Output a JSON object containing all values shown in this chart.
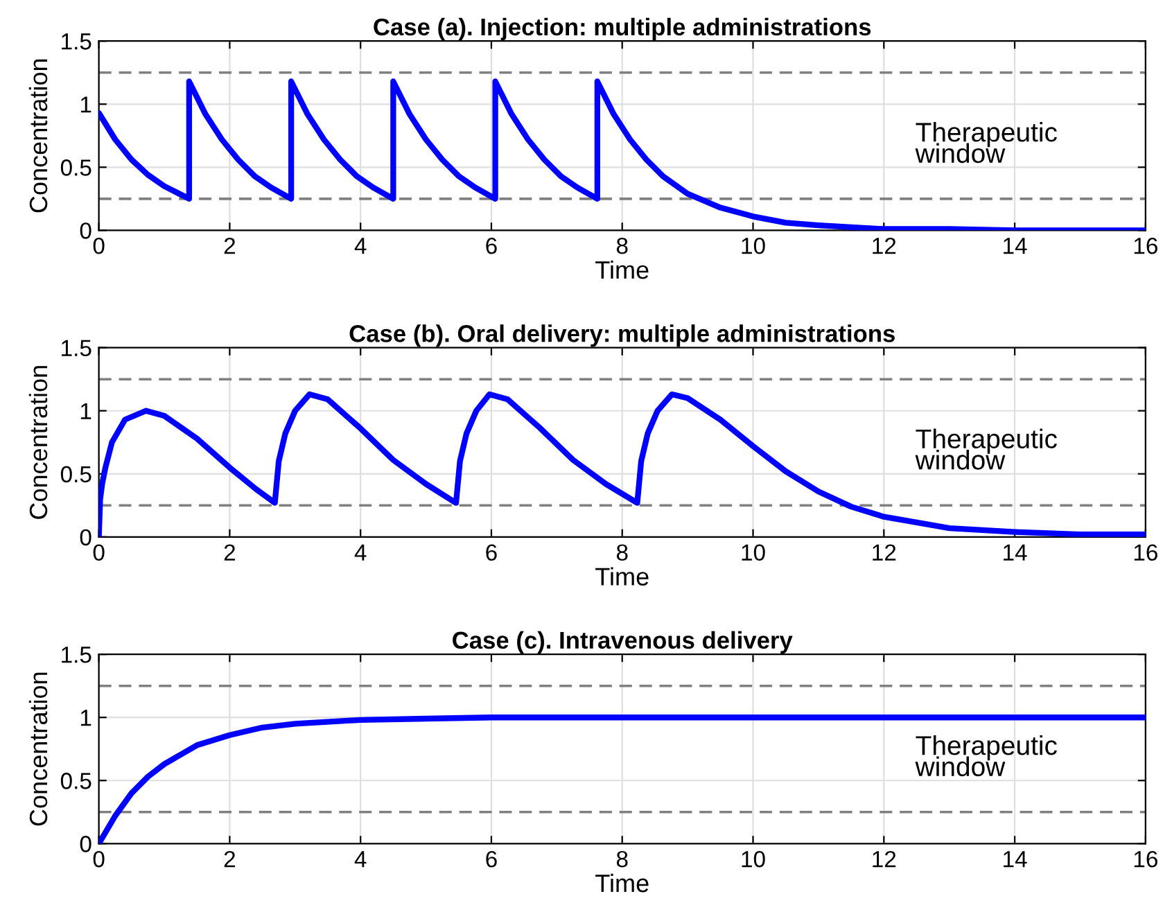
{
  "chart_data": [
    {
      "type": "line",
      "title": "Case (a). Injection: multiple administrations",
      "xlabel": "Time",
      "ylabel": "Concentration",
      "xlim": [
        0,
        16
      ],
      "ylim": [
        0,
        1.5
      ],
      "xticks": [
        0,
        2,
        4,
        6,
        8,
        10,
        12,
        14,
        16
      ],
      "yticks": [
        0,
        0.5,
        1,
        1.5
      ],
      "grid": true,
      "marker": "none",
      "line_style": "solid",
      "ref_lines": [
        {
          "axis": "y",
          "value": 1.25,
          "color": "#808080",
          "line_style": "dashed"
        },
        {
          "axis": "y",
          "value": 0.25,
          "color": "#808080",
          "line_style": "dashed"
        }
      ],
      "annotations": [
        "Therapeutic\nwindow"
      ],
      "series": [
        {
          "color": "#0000ff",
          "x": [
            0,
            0.25,
            0.5,
            0.75,
            1.0,
            1.38,
            1.38,
            1.63,
            1.88,
            2.13,
            2.38,
            2.63,
            2.94,
            2.94,
            3.19,
            3.44,
            3.69,
            3.94,
            4.19,
            4.5,
            4.5,
            4.75,
            5.0,
            5.25,
            5.5,
            5.75,
            6.06,
            6.06,
            6.31,
            6.56,
            6.81,
            7.06,
            7.31,
            7.62,
            7.62,
            7.87,
            8.12,
            8.37,
            8.62,
            9.0,
            9.5,
            10.0,
            10.5,
            11.0,
            12.0,
            13.0,
            14.0,
            16.0
          ],
          "values": [
            0.93,
            0.72,
            0.56,
            0.44,
            0.35,
            0.25,
            1.18,
            0.92,
            0.72,
            0.56,
            0.43,
            0.34,
            0.25,
            1.18,
            0.92,
            0.72,
            0.56,
            0.43,
            0.34,
            0.25,
            1.18,
            0.92,
            0.72,
            0.56,
            0.43,
            0.34,
            0.25,
            1.18,
            0.92,
            0.72,
            0.56,
            0.43,
            0.34,
            0.25,
            1.18,
            0.92,
            0.72,
            0.56,
            0.43,
            0.29,
            0.18,
            0.11,
            0.06,
            0.04,
            0.01,
            0.01,
            0,
            0
          ]
        }
      ]
    },
    {
      "type": "line",
      "title": "Case (b). Oral delivery: multiple administrations",
      "xlabel": "Time",
      "ylabel": "Concentration",
      "xlim": [
        0,
        16
      ],
      "ylim": [
        0,
        1.5
      ],
      "xticks": [
        0,
        2,
        4,
        6,
        8,
        10,
        12,
        14,
        16
      ],
      "yticks": [
        0,
        0.5,
        1,
        1.5
      ],
      "grid": true,
      "marker": "none",
      "line_style": "solid",
      "ref_lines": [
        {
          "axis": "y",
          "value": 1.25,
          "color": "#808080",
          "line_style": "dashed"
        },
        {
          "axis": "y",
          "value": 0.25,
          "color": "#808080",
          "line_style": "dashed"
        }
      ],
      "annotations": [
        "Therapeutic\nwindow"
      ],
      "series": [
        {
          "color": "#0000ff",
          "x": [
            0,
            0.02,
            0.05,
            0.1,
            0.2,
            0.4,
            0.72,
            1.0,
            1.5,
            2.0,
            2.4,
            2.69,
            2.75,
            2.85,
            3.0,
            3.22,
            3.5,
            4.0,
            4.5,
            5.0,
            5.46,
            5.52,
            5.62,
            5.77,
            5.97,
            6.25,
            6.75,
            7.25,
            7.75,
            8.23,
            8.29,
            8.39,
            8.54,
            8.76,
            9.0,
            9.5,
            10.0,
            10.5,
            11.0,
            11.5,
            12.0,
            13.0,
            14.0,
            15.0,
            16.0
          ],
          "values": [
            0,
            0.3,
            0.42,
            0.55,
            0.75,
            0.93,
            1.0,
            0.96,
            0.78,
            0.55,
            0.38,
            0.27,
            0.6,
            0.82,
            1.0,
            1.13,
            1.09,
            0.86,
            0.61,
            0.42,
            0.27,
            0.6,
            0.82,
            1.0,
            1.13,
            1.09,
            0.86,
            0.61,
            0.42,
            0.27,
            0.6,
            0.82,
            1.0,
            1.13,
            1.1,
            0.93,
            0.72,
            0.52,
            0.36,
            0.24,
            0.16,
            0.07,
            0.04,
            0.02,
            0.02
          ]
        }
      ]
    },
    {
      "type": "line",
      "title": "Case (c). Intravenous delivery",
      "xlabel": "Time",
      "ylabel": "Concentration",
      "xlim": [
        0,
        16
      ],
      "ylim": [
        0,
        1.5
      ],
      "xticks": [
        0,
        2,
        4,
        6,
        8,
        10,
        12,
        14,
        16
      ],
      "yticks": [
        0,
        0.5,
        1,
        1.5
      ],
      "grid": true,
      "marker": "none",
      "line_style": "solid",
      "ref_lines": [
        {
          "axis": "y",
          "value": 1.25,
          "color": "#808080",
          "line_style": "dashed"
        },
        {
          "axis": "y",
          "value": 0.25,
          "color": "#808080",
          "line_style": "dashed"
        }
      ],
      "annotations": [
        "Therapeutic\nwindow"
      ],
      "series": [
        {
          "color": "#0000ff",
          "x": [
            0,
            0.25,
            0.5,
            0.75,
            1.0,
            1.5,
            2.0,
            2.5,
            3.0,
            4.0,
            5.0,
            6.0,
            8.0,
            16.0
          ],
          "values": [
            0,
            0.22,
            0.4,
            0.53,
            0.63,
            0.78,
            0.86,
            0.92,
            0.95,
            0.98,
            0.99,
            1.0,
            1.0,
            1.0
          ]
        }
      ]
    }
  ]
}
